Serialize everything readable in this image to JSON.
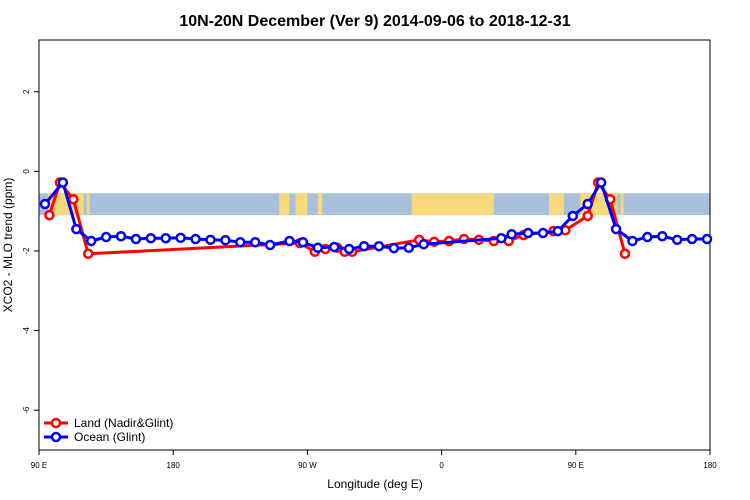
{
  "chart_data": {
    "type": "line",
    "title": "10N-20N December (Ver 9)   2014-09-06 to 2018-12-31",
    "xlabel": "Longitude (deg E)",
    "ylabel": "XCO2 - MLO trend (ppm)",
    "xlim": [
      90,
      540
    ],
    "ylim": [
      -7,
      3.3
    ],
    "x_ticks": [
      {
        "value": 90,
        "label": "90 E"
      },
      {
        "value": 180,
        "label": "180"
      },
      {
        "value": 270,
        "label": "90 W"
      },
      {
        "value": 360,
        "label": "0"
      },
      {
        "value": 450,
        "label": "90 E"
      },
      {
        "value": 540,
        "label": "180"
      }
    ],
    "y_ticks": [
      {
        "value": 2,
        "label": "2"
      },
      {
        "value": 0,
        "label": "0"
      },
      {
        "value": -2,
        "label": "-2"
      },
      {
        "value": -4,
        "label": "-4"
      },
      {
        "value": -6,
        "label": "-6"
      }
    ],
    "band": {
      "lat_range": "10N-20N",
      "y_range": [
        -1.1,
        -0.55
      ],
      "ocean_color": "#a9c0dd",
      "land_color": "#f6d97b"
    },
    "legend_position": "bottom-left",
    "series": [
      {
        "name": "Land (Nadir&Glint)",
        "color": "#ff0000",
        "points": [
          [
            97,
            -1.1
          ],
          [
            104,
            -0.28
          ],
          [
            113,
            -0.7
          ],
          [
            123,
            -2.07
          ],
          [
            265,
            -1.8
          ],
          [
            275,
            -2.02
          ],
          [
            282,
            -1.95
          ],
          [
            290,
            -1.92
          ],
          [
            295,
            -2.02
          ],
          [
            300,
            -2.02
          ],
          [
            345,
            -1.72
          ],
          [
            355,
            -1.77
          ],
          [
            365,
            -1.75
          ],
          [
            375,
            -1.7
          ],
          [
            385,
            -1.72
          ],
          [
            395,
            -1.75
          ],
          [
            405,
            -1.75
          ],
          [
            415,
            -1.6
          ],
          [
            435,
            -1.5
          ],
          [
            443,
            -1.48
          ],
          [
            458,
            -1.12
          ],
          [
            465,
            -0.28
          ],
          [
            473,
            -0.7
          ],
          [
            483,
            -2.07
          ]
        ]
      },
      {
        "name": "Ocean (Glint)",
        "color": "#0000ff",
        "points": [
          [
            94,
            -0.82
          ],
          [
            106,
            -0.28
          ],
          [
            115,
            -1.45
          ],
          [
            125,
            -1.75
          ],
          [
            135,
            -1.65
          ],
          [
            145,
            -1.63
          ],
          [
            155,
            -1.7
          ],
          [
            165,
            -1.68
          ],
          [
            175,
            -1.68
          ],
          [
            185,
            -1.67
          ],
          [
            195,
            -1.7
          ],
          [
            205,
            -1.72
          ],
          [
            215,
            -1.73
          ],
          [
            225,
            -1.78
          ],
          [
            235,
            -1.78
          ],
          [
            245,
            -1.85
          ],
          [
            258,
            -1.75
          ],
          [
            267,
            -1.78
          ],
          [
            277,
            -1.92
          ],
          [
            288,
            -1.9
          ],
          [
            298,
            -1.95
          ],
          [
            308,
            -1.88
          ],
          [
            318,
            -1.88
          ],
          [
            328,
            -1.93
          ],
          [
            338,
            -1.92
          ],
          [
            348,
            -1.83
          ],
          [
            400,
            -1.68
          ],
          [
            407,
            -1.58
          ],
          [
            418,
            -1.55
          ],
          [
            428,
            -1.55
          ],
          [
            438,
            -1.5
          ],
          [
            448,
            -1.12
          ],
          [
            458,
            -0.82
          ],
          [
            467,
            -0.28
          ],
          [
            477,
            -1.45
          ],
          [
            488,
            -1.75
          ],
          [
            498,
            -1.65
          ],
          [
            508,
            -1.63
          ],
          [
            518,
            -1.72
          ],
          [
            528,
            -1.7
          ],
          [
            538,
            -1.7
          ]
        ]
      }
    ]
  }
}
